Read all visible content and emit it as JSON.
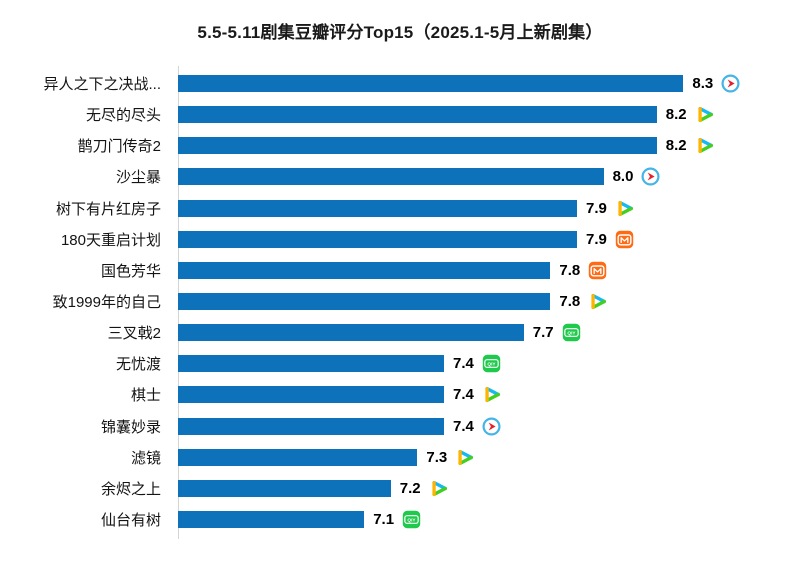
{
  "title": "5.5-5.11剧集豆瓣评分Top15（2025.1-5月上新剧集）",
  "chart_data": {
    "type": "bar",
    "orientation": "horizontal",
    "title": "5.5-5.11剧集豆瓣评分Top15（2025.1-5月上新剧集）",
    "categories": [
      "异人之下之决战...",
      "无尽的尽头",
      "鹊刀门传奇2",
      "沙尘暴",
      "树下有片红房子",
      "180天重启计划",
      "国色芳华",
      "致1999年的自己",
      "三叉戟2",
      "无忧渡",
      "棋士",
      "锦囊妙录",
      "滤镜",
      "余烬之上",
      "仙台有树"
    ],
    "values": [
      8.3,
      8.2,
      8.2,
      8.0,
      7.9,
      7.9,
      7.8,
      7.8,
      7.7,
      7.4,
      7.4,
      7.4,
      7.3,
      7.2,
      7.1
    ],
    "platforms": [
      "youku",
      "tencent",
      "tencent",
      "youku",
      "tencent",
      "mango",
      "mango",
      "tencent",
      "iqiyi",
      "iqiyi",
      "tencent",
      "youku",
      "tencent",
      "tencent",
      "iqiyi"
    ],
    "value_format": "one-decimal",
    "xlabel": "",
    "ylabel": "",
    "xlim": [
      6.4,
      8.4
    ],
    "grid": false,
    "legend": false,
    "bar_color": "#0d72b9",
    "axis_line_color": "#d4d4d4"
  },
  "platform_styles": {
    "youku": {
      "label": "youku-icon",
      "ring": "#45b4e6",
      "arrow": "#e62129"
    },
    "tencent": {
      "label": "tencent-video-icon",
      "left": "#ffb400",
      "top": "#18b8f0",
      "bottom": "#43cf1f"
    },
    "mango": {
      "label": "mango-tv-icon",
      "bg": "#ff6a14",
      "fg": "#ffffff"
    },
    "iqiyi": {
      "label": "iqiyi-icon",
      "bg": "#1fc94c",
      "fg": "#ffffff",
      "text": "QIY"
    }
  }
}
